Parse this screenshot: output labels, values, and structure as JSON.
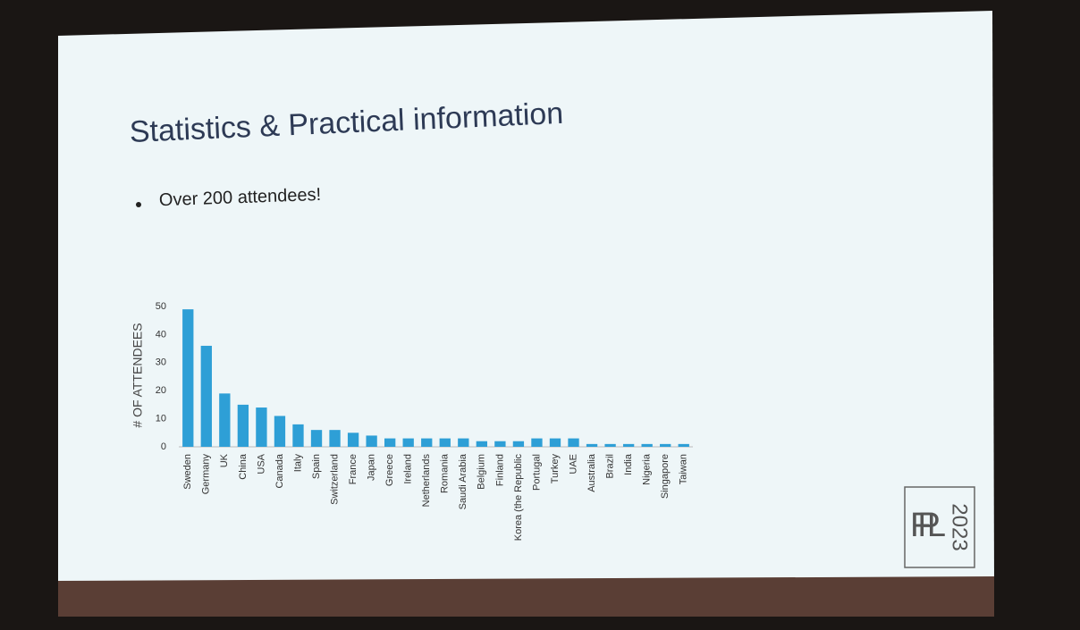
{
  "slide": {
    "title": "Statistics & Practical information",
    "bullet": "Over 200 attendees!",
    "logo": {
      "letters": "FPL",
      "year": "2023"
    }
  },
  "chart_data": {
    "type": "bar",
    "y_label": "# OF ATTENDEES",
    "categories": [
      "Sweden",
      "Germany",
      "UK",
      "China",
      "USA",
      "Canada",
      "Italy",
      "Spain",
      "Switzerland",
      "France",
      "Japan",
      "Greece",
      "Ireland",
      "Netherlands",
      "Romania",
      "Saudi Arabia",
      "Belgium",
      "Finland",
      "Korea (the Republic",
      "Portugal",
      "Turkey",
      "UAE",
      "Australia",
      "Brazil",
      "India",
      "Nigeria",
      "Singapore",
      "Taiwan"
    ],
    "values": [
      49,
      36,
      19,
      15,
      14,
      11,
      8,
      6,
      6,
      5,
      4,
      3,
      3,
      3,
      3,
      3,
      2,
      2,
      2,
      3,
      3,
      3,
      1,
      1,
      1,
      1,
      1,
      1
    ],
    "color": "#2e9fd6",
    "ylim": [
      0,
      50
    ],
    "yticks": [
      0,
      10,
      20,
      30,
      40,
      50
    ],
    "grid": false
  }
}
